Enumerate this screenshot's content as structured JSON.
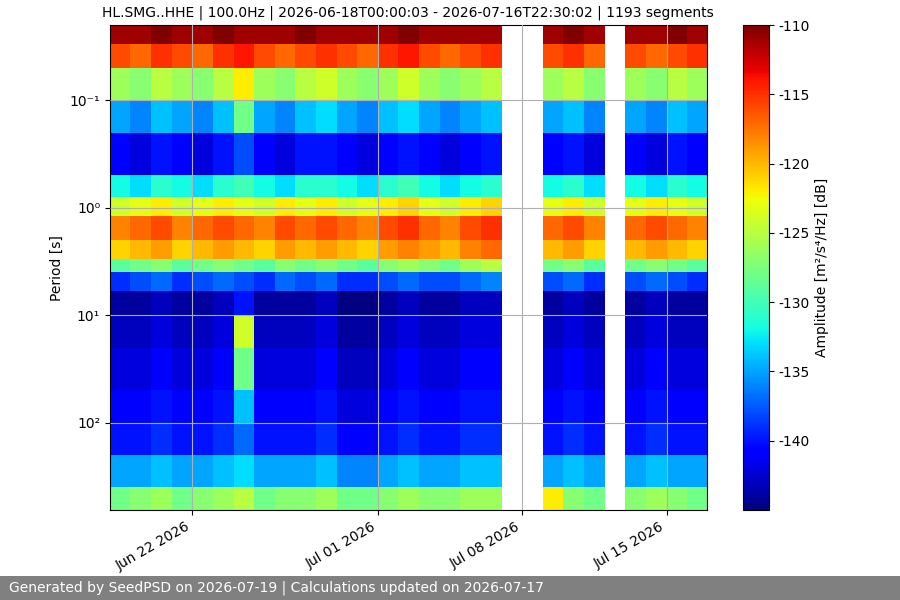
{
  "chart_data": {
    "type": "heatmap",
    "title": "HL.SMG..HHE | 100.0Hz | 2026-06-18T00:00:03 - 2026-07-16T22:30:02 | 1193 segments",
    "ylabel": "Period [s]",
    "log": "y",
    "grid": true,
    "x_edges": [
      "2026-06-18",
      "2026-06-19",
      "2026-06-20",
      "2026-06-21",
      "2026-06-22",
      "2026-06-23",
      "2026-06-24",
      "2026-06-25",
      "2026-06-26",
      "2026-06-27",
      "2026-06-28",
      "2026-06-29",
      "2026-06-30",
      "2026-07-01",
      "2026-07-02",
      "2026-07-03",
      "2026-07-04",
      "2026-07-05",
      "2026-07-06",
      "2026-07-07",
      "2026-07-08",
      "2026-07-09",
      "2026-07-10",
      "2026-07-11",
      "2026-07-12",
      "2026-07-13",
      "2026-07-14",
      "2026-07-15",
      "2026-07-16",
      "2026-07-17"
    ],
    "y_edges": [
      0.02,
      0.03,
      0.05,
      0.1,
      0.2,
      0.5,
      0.8,
      1.2,
      2,
      3,
      4,
      6,
      10,
      20,
      50,
      100,
      200,
      400,
      650
    ],
    "cells": [
      [
        -111,
        -111,
        -110,
        -111,
        -111,
        -110,
        -111,
        -111,
        -111,
        -110,
        -111,
        -111,
        -111,
        -111,
        -110,
        -111,
        -111,
        -111,
        -111,
        null,
        null,
        -111,
        -110,
        -111,
        null,
        -111,
        -111,
        -110,
        -111
      ],
      [
        -116,
        -117,
        -115,
        -116,
        -117,
        -115,
        -114,
        -116,
        -117,
        -116,
        -115,
        -116,
        -117,
        -115,
        -114,
        -116,
        -117,
        -116,
        -115,
        null,
        null,
        -116,
        -115,
        -117,
        null,
        -116,
        -117,
        -116,
        -115
      ],
      [
        -126,
        -127,
        -125,
        -126,
        -127,
        -125,
        -122,
        -126,
        -127,
        -125,
        -124,
        -126,
        -127,
        -126,
        -124,
        -126,
        -127,
        -126,
        -125,
        null,
        null,
        -126,
        -125,
        -127,
        null,
        -126,
        -127,
        -125,
        -126
      ],
      [
        -135,
        -136,
        -134,
        -135,
        -136,
        -134,
        -128,
        -135,
        -136,
        -134,
        -133,
        -135,
        -136,
        -134,
        -133,
        -135,
        -136,
        -135,
        -134,
        null,
        null,
        -135,
        -134,
        -136,
        null,
        -135,
        -136,
        -134,
        -135
      ],
      [
        -141,
        -142,
        -140,
        -141,
        -142,
        -140,
        -138,
        -141,
        -142,
        -140,
        -140,
        -141,
        -142,
        -141,
        -140,
        -141,
        -142,
        -141,
        -140,
        null,
        null,
        -141,
        -140,
        -142,
        null,
        -141,
        -142,
        -140,
        -141
      ],
      [
        -132,
        -133,
        -131,
        -132,
        -133,
        -131,
        -130,
        -132,
        -133,
        -131,
        -131,
        -132,
        -133,
        -131,
        -130,
        -132,
        -133,
        -132,
        -131,
        null,
        null,
        -132,
        -131,
        -133,
        null,
        -132,
        -133,
        -131,
        -132
      ],
      [
        -124,
        -123,
        -122,
        -124,
        -123,
        -122,
        -123,
        -124,
        -122,
        -123,
        -122,
        -124,
        -123,
        -122,
        -121,
        -123,
        -124,
        -122,
        -121,
        null,
        null,
        -123,
        -122,
        -124,
        null,
        -123,
        -122,
        -123,
        -124
      ],
      [
        -118,
        -117,
        -116,
        -118,
        -117,
        -116,
        -117,
        -118,
        -116,
        -117,
        -116,
        -117,
        -118,
        -116,
        -115,
        -117,
        -118,
        -116,
        -115,
        null,
        null,
        -117,
        -116,
        -118,
        null,
        -117,
        -116,
        -117,
        -118
      ],
      [
        -121,
        -120,
        -119,
        -121,
        -120,
        -119,
        -120,
        -121,
        -119,
        -120,
        -119,
        -120,
        -121,
        -119,
        -118,
        -119,
        -120,
        -118,
        -117,
        null,
        null,
        -120,
        -119,
        -121,
        null,
        -120,
        -119,
        -120,
        -121
      ],
      [
        -129,
        -128,
        -127,
        -129,
        -128,
        -127,
        -128,
        -129,
        -127,
        -128,
        -127,
        -128,
        -129,
        -127,
        -126,
        -127,
        -128,
        -126,
        -125,
        null,
        null,
        -128,
        -127,
        -129,
        null,
        -128,
        -127,
        -128,
        -129
      ],
      [
        -139,
        -138,
        -137,
        -139,
        -138,
        -137,
        -138,
        -139,
        -137,
        -138,
        -137,
        -139,
        -139,
        -138,
        -137,
        -138,
        -138,
        -137,
        -136,
        null,
        null,
        -138,
        -137,
        -139,
        null,
        -138,
        -137,
        -138,
        -139
      ],
      [
        -144,
        -144,
        -143,
        -144,
        -144,
        -143,
        -140,
        -144,
        -144,
        -144,
        -143,
        -145,
        -145,
        -144,
        -143,
        -144,
        -144,
        -143,
        -143,
        null,
        null,
        -144,
        -143,
        -144,
        null,
        -144,
        -143,
        -144,
        -144
      ],
      [
        -143,
        -143,
        -142,
        -143,
        -143,
        -142,
        -124,
        -143,
        -143,
        -143,
        -142,
        -144,
        -144,
        -143,
        -142,
        -143,
        -143,
        -142,
        -142,
        null,
        null,
        -143,
        -142,
        -143,
        null,
        -143,
        -142,
        -143,
        -143
      ],
      [
        -142,
        -142,
        -141,
        -142,
        -142,
        -141,
        -128,
        -142,
        -142,
        -142,
        -141,
        -143,
        -143,
        -142,
        -141,
        -142,
        -142,
        -141,
        -141,
        null,
        null,
        -142,
        -141,
        -142,
        null,
        -142,
        -141,
        -142,
        -142
      ],
      [
        -141,
        -141,
        -140,
        -141,
        -141,
        -140,
        -134,
        -141,
        -141,
        -141,
        -140,
        -142,
        -142,
        -141,
        -140,
        -141,
        -141,
        -140,
        -140,
        null,
        null,
        -141,
        -140,
        -141,
        null,
        -141,
        -140,
        -141,
        -141
      ],
      [
        -140,
        -140,
        -139,
        -140,
        -140,
        -139,
        -137,
        -140,
        -140,
        -140,
        -139,
        -141,
        -141,
        -140,
        -139,
        -140,
        -140,
        -139,
        -139,
        null,
        null,
        -140,
        -139,
        -140,
        null,
        -140,
        -139,
        -140,
        -140
      ],
      [
        -135,
        -135,
        -134,
        -135,
        -135,
        -134,
        -133,
        -135,
        -135,
        -135,
        -134,
        -136,
        -136,
        -135,
        -134,
        -135,
        -135,
        -134,
        -134,
        null,
        null,
        -135,
        -134,
        -135,
        null,
        -135,
        -134,
        -135,
        -135
      ],
      [
        -128,
        -127,
        -126,
        -128,
        -127,
        -126,
        -125,
        -128,
        -127,
        -127,
        -126,
        -128,
        -128,
        -127,
        -126,
        -127,
        -127,
        -126,
        -126,
        null,
        null,
        -122,
        -127,
        -128,
        null,
        -127,
        -126,
        -127,
        -128
      ]
    ],
    "xlim": [
      "2026-06-18T00:00:03",
      "2026-07-16T22:30:02"
    ],
    "xticks": [
      {
        "value": "2026-06-22",
        "label": "Jun 22 2026"
      },
      {
        "value": "2026-07-01",
        "label": "Jul 01 2026"
      },
      {
        "value": "2026-07-08",
        "label": "Jul 08 2026"
      },
      {
        "value": "2026-07-15",
        "label": "Jul 15 2026"
      }
    ],
    "ylim": [
      650,
      0.02
    ],
    "yticks": [
      {
        "value": 0.1,
        "label": "10⁻¹"
      },
      {
        "value": 1,
        "label": "10⁰"
      },
      {
        "value": 10,
        "label": "10¹"
      },
      {
        "value": 100,
        "label": "10²"
      }
    ],
    "colorbar": {
      "label": "Amplitude [m²/s⁴/Hz] [dB]",
      "range": [
        -145,
        -110
      ],
      "ticks": [
        -140,
        -135,
        -130,
        -125,
        -120,
        -115,
        -110
      ]
    }
  },
  "footer": "Generated by SeedPSD on 2026-07-19 | Calculations updated on 2026-07-17"
}
